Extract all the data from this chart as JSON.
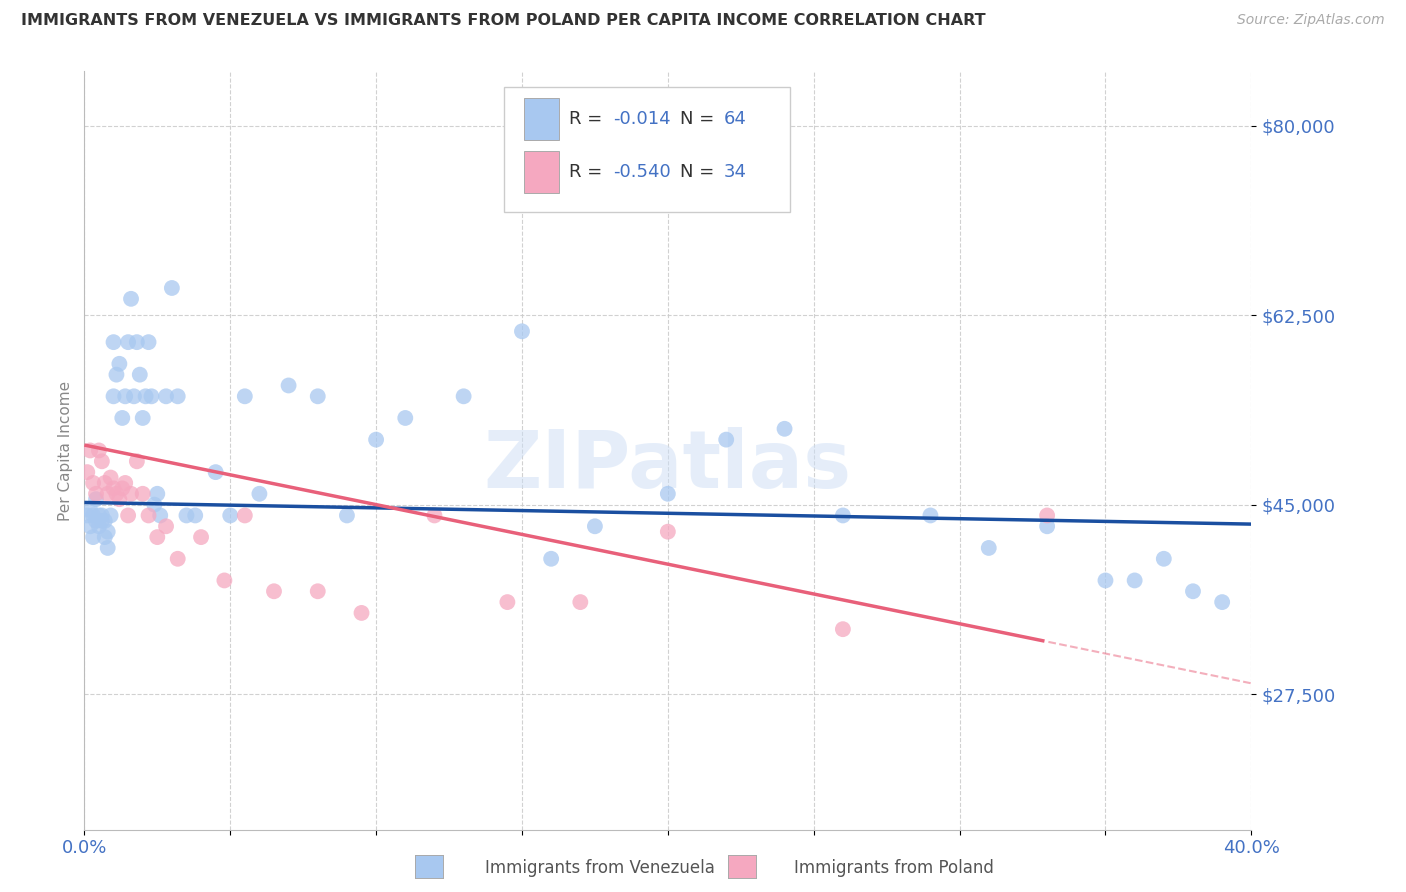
{
  "title": "IMMIGRANTS FROM VENEZUELA VS IMMIGRANTS FROM POLAND PER CAPITA INCOME CORRELATION CHART",
  "source": "Source: ZipAtlas.com",
  "ylabel": "Per Capita Income",
  "y_ticks": [
    27500,
    45000,
    62500,
    80000
  ],
  "y_tick_labels": [
    "$27,500",
    "$45,000",
    "$62,500",
    "$80,000"
  ],
  "xlim": [
    0.0,
    0.4
  ],
  "ylim": [
    15000,
    85000
  ],
  "background_color": "#ffffff",
  "watermark": "ZIPatlas",
  "color_venezuela": "#a8c8f0",
  "color_poland": "#f5a8c0",
  "color_venezuela_line": "#1a4fa0",
  "color_poland_line": "#e8607a",
  "color_axis_labels": "#4472c4",
  "grid_color": "#cccccc",
  "venezuela_x": [
    0.001,
    0.002,
    0.002,
    0.003,
    0.003,
    0.004,
    0.004,
    0.005,
    0.005,
    0.006,
    0.006,
    0.007,
    0.007,
    0.008,
    0.008,
    0.009,
    0.01,
    0.01,
    0.011,
    0.012,
    0.013,
    0.014,
    0.015,
    0.016,
    0.017,
    0.018,
    0.019,
    0.02,
    0.021,
    0.022,
    0.023,
    0.024,
    0.025,
    0.026,
    0.028,
    0.03,
    0.032,
    0.035,
    0.038,
    0.045,
    0.05,
    0.055,
    0.06,
    0.07,
    0.08,
    0.09,
    0.1,
    0.11,
    0.13,
    0.15,
    0.16,
    0.175,
    0.2,
    0.22,
    0.24,
    0.26,
    0.29,
    0.31,
    0.33,
    0.35,
    0.36,
    0.37,
    0.38,
    0.39
  ],
  "venezuela_y": [
    44000,
    44500,
    43000,
    42000,
    44000,
    43500,
    45500,
    43000,
    44000,
    43500,
    44000,
    42000,
    43500,
    41000,
    42500,
    44000,
    55000,
    60000,
    57000,
    58000,
    53000,
    55000,
    60000,
    64000,
    55000,
    60000,
    57000,
    53000,
    55000,
    60000,
    55000,
    45000,
    46000,
    44000,
    55000,
    65000,
    55000,
    44000,
    44000,
    48000,
    44000,
    55000,
    46000,
    56000,
    55000,
    44000,
    51000,
    53000,
    55000,
    61000,
    40000,
    43000,
    46000,
    51000,
    52000,
    44000,
    44000,
    41000,
    43000,
    38000,
    38000,
    40000,
    37000,
    36000
  ],
  "poland_x": [
    0.001,
    0.002,
    0.003,
    0.004,
    0.005,
    0.006,
    0.007,
    0.008,
    0.009,
    0.01,
    0.011,
    0.012,
    0.013,
    0.014,
    0.015,
    0.016,
    0.018,
    0.02,
    0.022,
    0.025,
    0.028,
    0.032,
    0.04,
    0.048,
    0.055,
    0.065,
    0.08,
    0.095,
    0.12,
    0.145,
    0.17,
    0.2,
    0.26,
    0.33
  ],
  "poland_y": [
    48000,
    50000,
    47000,
    46000,
    50000,
    49000,
    47000,
    46000,
    47500,
    46500,
    46000,
    45500,
    46500,
    47000,
    44000,
    46000,
    49000,
    46000,
    44000,
    42000,
    43000,
    40000,
    42000,
    38000,
    44000,
    37000,
    37000,
    35000,
    44000,
    36000,
    36000,
    42500,
    33500,
    44000
  ]
}
